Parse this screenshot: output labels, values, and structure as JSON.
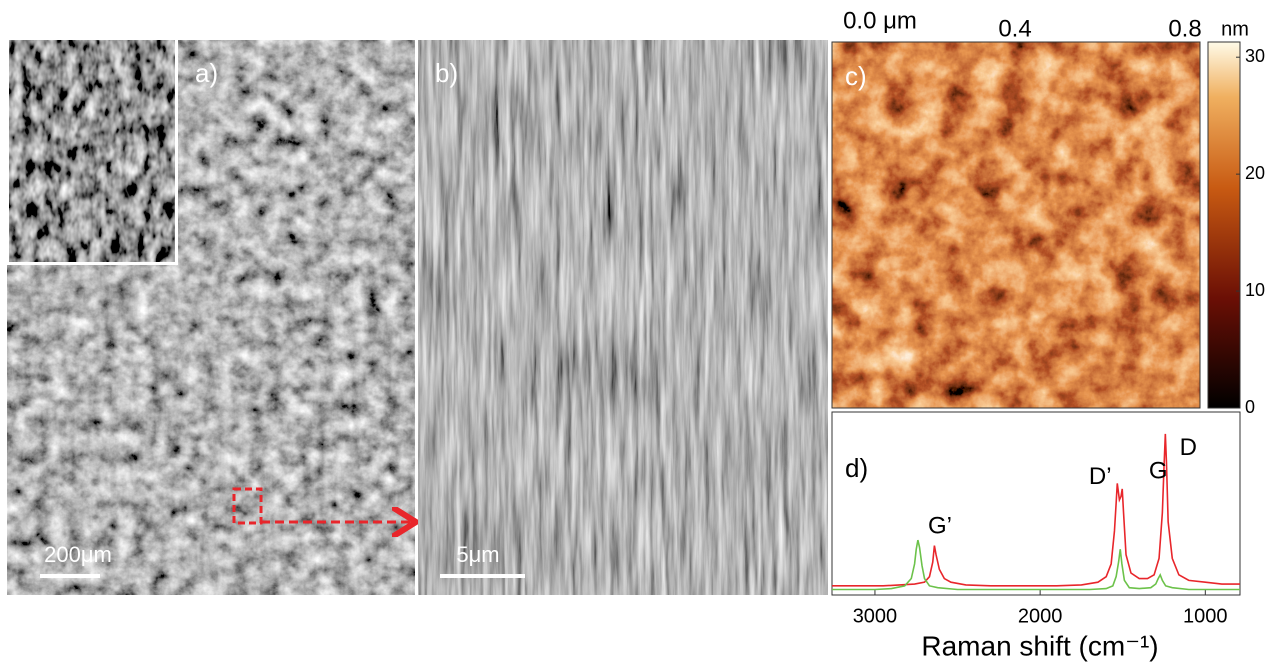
{
  "panels": {
    "a": {
      "label": "a)",
      "scale_bar": "200μm"
    },
    "b": {
      "label": "b)",
      "scale_bar": "5μm"
    },
    "c": {
      "label": "c)",
      "axis_labels": [
        "0.0 μm",
        "0.4",
        "0.8"
      ],
      "colorbar": {
        "unit": "nm",
        "lim": [
          0,
          31.3
        ],
        "ticks": [
          0,
          10,
          20,
          30
        ]
      }
    }
  },
  "chart_data": {
    "type": "line",
    "label": "d)",
    "xlabel": "Raman shift (cm⁻¹)",
    "xlim": [
      3260,
      790
    ],
    "xticks": [
      3000,
      2000,
      1000
    ],
    "ylim": [
      0,
      100
    ],
    "series": [
      {
        "color": "#e8262b",
        "x": [
          3260,
          3100,
          2950,
          2850,
          2760,
          2700,
          2670,
          2650,
          2640,
          2630,
          2610,
          2580,
          2540,
          2450,
          2300,
          2100,
          1900,
          1750,
          1650,
          1600,
          1570,
          1550,
          1540,
          1533,
          1520,
          1510,
          1503,
          1495,
          1480,
          1450,
          1400,
          1350,
          1310,
          1280,
          1260,
          1250,
          1242,
          1235,
          1225,
          1200,
          1160,
          1100,
          1000,
          900,
          790
        ],
        "values": [
          5,
          5,
          5,
          5.5,
          6,
          7,
          10,
          18,
          27,
          22,
          14,
          9,
          7,
          5.5,
          5,
          5,
          5,
          5.5,
          7,
          10,
          17,
          35,
          50,
          61,
          52,
          54,
          58,
          45,
          22,
          12,
          9,
          9,
          11,
          20,
          45,
          70,
          88,
          72,
          40,
          20,
          11,
          8,
          7,
          6,
          6
        ]
      },
      {
        "color": "#6cc24a",
        "x": [
          3260,
          3000,
          2900,
          2820,
          2780,
          2760,
          2750,
          2740,
          2730,
          2715,
          2700,
          2670,
          2620,
          2500,
          2200,
          1900,
          1700,
          1600,
          1560,
          1540,
          1525,
          1515,
          1505,
          1490,
          1460,
          1400,
          1330,
          1300,
          1285,
          1273,
          1260,
          1240,
          1200,
          1100,
          1000,
          900,
          790
        ],
        "values": [
          3,
          3,
          3.5,
          5,
          9,
          17,
          25,
          30,
          26,
          16,
          9,
          5,
          4,
          3,
          3,
          3,
          3,
          3.5,
          5,
          10,
          18,
          25,
          17,
          8,
          4,
          3.5,
          4,
          6,
          9,
          11,
          8,
          5,
          4,
          3,
          3,
          3,
          3
        ]
      }
    ],
    "annotations": [
      {
        "text": "G’",
        "x": 2606,
        "y": 37
      },
      {
        "text": "D’",
        "x": 1636,
        "y": 64
      },
      {
        "text": "G",
        "x": 1285,
        "y": 67
      },
      {
        "text": "D",
        "x": 1103,
        "y": 80
      }
    ]
  }
}
